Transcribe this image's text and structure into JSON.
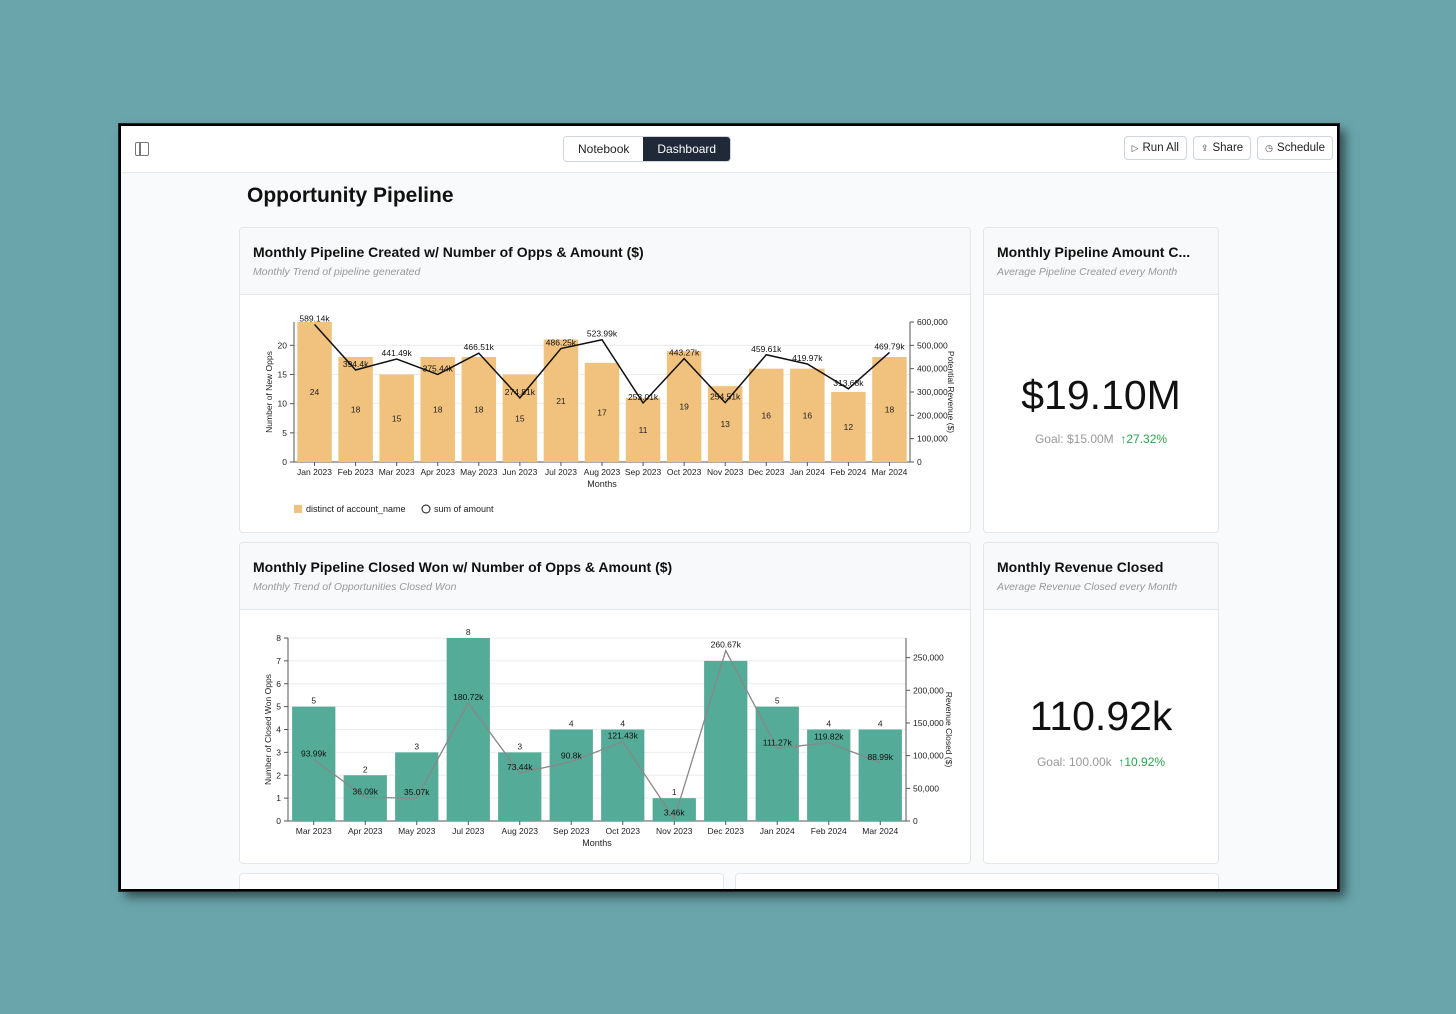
{
  "topbar": {
    "tabs": [
      {
        "label": "Notebook"
      },
      {
        "label": "Dashboard"
      }
    ],
    "run_all": "Run All",
    "share": "Share",
    "schedule": "Schedule"
  },
  "page_title": "Opportunity Pipeline",
  "cards": {
    "pipeline_created": {
      "title": "Monthly Pipeline Created w/ Number of Opps & Amount ($)",
      "subtitle": "Monthly Trend of pipeline generated"
    },
    "pipeline_amount": {
      "title": "Monthly Pipeline Amount C...",
      "subtitle": "Average Pipeline Created every Month",
      "value": "$19.10M",
      "goal": "Goal: $15.00M",
      "delta": "27.32%"
    },
    "closed_won": {
      "title": "Monthly Pipeline Closed Won w/ Number of Opps & Amount ($)",
      "subtitle": "Monthly Trend of Opportunities Closed Won"
    },
    "revenue_closed": {
      "title": "Monthly Revenue Closed",
      "subtitle": "Average Revenue Closed every Month",
      "value": "110.92k",
      "goal": "Goal: 100.00k",
      "delta": "10.92%"
    }
  },
  "colors": {
    "bar1": "#f1c27d",
    "bar2": "#54ab97",
    "line1": "#111111",
    "line2": "#888888",
    "kpi_delta": "#2aa34a"
  },
  "chart_data": [
    {
      "type": "bar",
      "categories": [
        "Jan 2023",
        "Feb 2023",
        "Mar 2023",
        "Apr 2023",
        "May 2023",
        "Jun 2023",
        "Jul 2023",
        "Aug 2023",
        "Sep 2023",
        "Oct 2023",
        "Nov 2023",
        "Dec 2023",
        "Jan 2024",
        "Feb 2024",
        "Mar 2024"
      ],
      "series": [
        {
          "name": "distinct of account_name",
          "type": "bar",
          "axis": "left",
          "values": [
            24,
            18,
            15,
            18,
            18,
            15,
            21,
            17,
            11,
            19,
            13,
            16,
            16,
            12,
            18
          ]
        },
        {
          "name": "sum of amount",
          "type": "line",
          "axis": "right",
          "values": [
            589140,
            394400,
            441490,
            375440,
            466510,
            274810,
            486250,
            523990,
            253010,
            443270,
            254510,
            459610,
            419970,
            313680,
            469790
          ],
          "labels": [
            "589.14k",
            "394.4k",
            "441.49k",
            "375.44k",
            "466.51k",
            "274.81k",
            "486.25k",
            "523.99k",
            "253.01k",
            "443.27k",
            "254.51k",
            "459.61k",
            "419.97k",
            "313.68k",
            "469.79k"
          ]
        }
      ],
      "bar_labels": [
        "24",
        "18",
        "15",
        "18",
        "18",
        "15",
        "21",
        "17",
        "11",
        "19",
        "13",
        "16",
        "16",
        "12",
        "18"
      ],
      "xlabel": "Months",
      "ylabel": "Number of New Opps",
      "y2label": "Potential Revenue ($)",
      "ylim": [
        0,
        24
      ],
      "y2lim": [
        0,
        600000
      ],
      "yticks": [
        "0",
        "5",
        "10",
        "15",
        "20"
      ],
      "y2ticks": [
        "0",
        "100,000",
        "200,000",
        "300,000",
        "400,000",
        "500,000",
        "600,000"
      ],
      "legend": [
        {
          "label": "distinct of account_name"
        },
        {
          "label": "sum of amount"
        }
      ],
      "legend_position": "bottom-left"
    },
    {
      "type": "bar",
      "categories": [
        "Mar 2023",
        "Apr 2023",
        "May 2023",
        "Jul 2023",
        "Aug 2023",
        "Sep 2023",
        "Oct 2023",
        "Nov 2023",
        "Dec 2023",
        "Jan 2024",
        "Feb 2024",
        "Mar 2024"
      ],
      "series": [
        {
          "name": "",
          "type": "bar",
          "axis": "left",
          "values": [
            5,
            2,
            3,
            8,
            3,
            4,
            4,
            1,
            7,
            5,
            4,
            4
          ]
        },
        {
          "name": "",
          "type": "line",
          "axis": "right",
          "values": [
            93990,
            36090,
            35070,
            180720,
            73440,
            90800,
            121430,
            3460,
            260670,
            111270,
            119820,
            88990
          ],
          "labels": [
            "93.99k",
            "36.09k",
            "35.07k",
            "180.72k",
            "73.44k",
            "90.8k",
            "121.43k",
            "3.46k",
            "260.67k",
            "111.27k",
            "119.82k",
            "88.99k"
          ]
        }
      ],
      "bar_labels": [
        "5",
        "2",
        "3",
        "8",
        "3",
        "4",
        "4",
        "1",
        "",
        "5",
        "4",
        "4"
      ],
      "xlabel": "Months",
      "ylabel": "Number of Closed Won Opps",
      "y2label": "Revenue Closed ($)",
      "ylim": [
        0,
        8
      ],
      "y2lim": [
        0,
        280000
      ],
      "yticks": [
        "0",
        "1",
        "2",
        "3",
        "4",
        "5",
        "6",
        "7",
        "8"
      ],
      "y2ticks": [
        "0",
        "50,000",
        "100,000",
        "150,000",
        "200,000",
        "250,000"
      ]
    }
  ]
}
